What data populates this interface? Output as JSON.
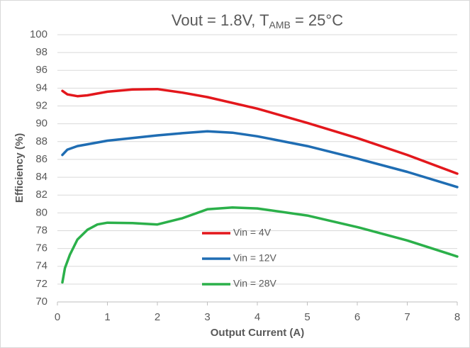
{
  "chart_data": {
    "type": "line",
    "title": {
      "main": "Vout = 1.8V, T",
      "sub": "AMB",
      "rest": " = 25°C"
    },
    "xlabel": "Output Current (A)",
    "ylabel": "Efficiency (%)",
    "xlim": [
      0,
      8
    ],
    "xticks": [
      0,
      1,
      2,
      3,
      4,
      5,
      6,
      7,
      8
    ],
    "ylim": [
      70,
      100
    ],
    "yticks": [
      70,
      72,
      74,
      76,
      78,
      80,
      82,
      84,
      86,
      88,
      90,
      92,
      94,
      96,
      98,
      100
    ],
    "grid": true,
    "legend": "center",
    "series": [
      {
        "name": "Vin = 4V",
        "color": "#e3171c",
        "x": [
          0.1,
          0.2,
          0.4,
          0.6,
          1,
          1.5,
          2,
          2.5,
          3,
          4,
          5,
          6,
          7,
          8
        ],
        "values": [
          93.7,
          93.3,
          93.1,
          93.2,
          93.6,
          93.85,
          93.9,
          93.5,
          93.0,
          91.7,
          90.1,
          88.4,
          86.5,
          84.4
        ]
      },
      {
        "name": "Vin = 12V",
        "color": "#1f6db3",
        "x": [
          0.1,
          0.2,
          0.4,
          0.6,
          1,
          1.5,
          2,
          2.5,
          3,
          3.5,
          4,
          5,
          6,
          7,
          8
        ],
        "values": [
          86.5,
          87.1,
          87.5,
          87.7,
          88.1,
          88.4,
          88.7,
          88.95,
          89.15,
          89.0,
          88.6,
          87.5,
          86.1,
          84.6,
          82.9
        ]
      },
      {
        "name": "Vin = 28V",
        "color": "#2bb04a",
        "x": [
          0.1,
          0.15,
          0.25,
          0.4,
          0.6,
          0.8,
          1,
          1.5,
          2,
          2.5,
          3,
          3.5,
          4,
          5,
          6,
          7,
          8
        ],
        "values": [
          72.2,
          73.8,
          75.3,
          77.0,
          78.1,
          78.7,
          78.9,
          78.85,
          78.7,
          79.4,
          80.4,
          80.6,
          80.5,
          79.7,
          78.4,
          76.9,
          75.1
        ]
      }
    ]
  }
}
